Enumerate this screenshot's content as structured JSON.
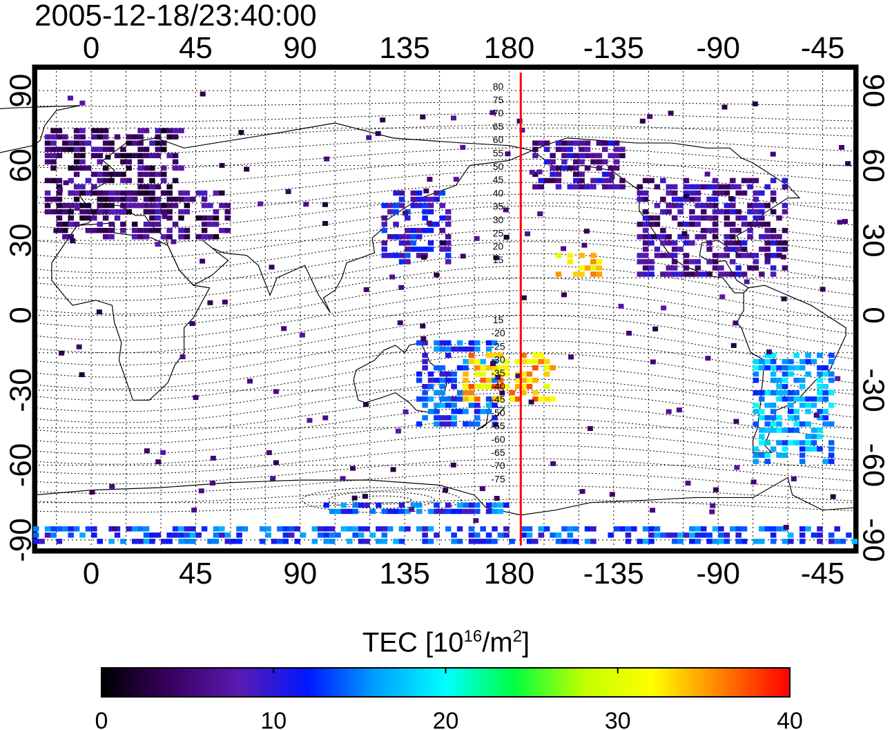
{
  "timestamp": "2005-12-18/23:40:00",
  "map": {
    "top_lon_ticks": [
      "0",
      "45",
      "90",
      "135",
      "180",
      "-135",
      "-90",
      "-45"
    ],
    "bottom_lon_ticks": [
      "0",
      "45",
      "90",
      "135",
      "180",
      "-135",
      "-90",
      "-45"
    ],
    "left_lat_ticks": [
      "90",
      "60",
      "30",
      "0",
      "-30",
      "-60",
      "-90"
    ],
    "right_lat_ticks": [
      "90",
      "60",
      "30",
      "0",
      "-30",
      "-60",
      "-90"
    ],
    "lon_range": [
      -25,
      330
    ],
    "lat_range": [
      -95,
      100
    ],
    "meridian_line_lon": 185,
    "meridian_line_color": "#ff0000",
    "contour_labels_north": [
      "80",
      "75",
      "70",
      "65",
      "60",
      "55",
      "50",
      "45",
      "40",
      "35",
      "30",
      "25",
      "20",
      "15"
    ],
    "contour_labels_south": [
      "15",
      "-20",
      "-25",
      "-30",
      "-35",
      "-40",
      "-45",
      "-50",
      "-55",
      "-60",
      "-65",
      "-70",
      "-75"
    ]
  },
  "colorbar": {
    "title_prefix": "TEC  [10",
    "title_exp1": "16",
    "title_mid": "/m",
    "title_exp2": "2",
    "title_suffix": "]",
    "ticks": [
      "0",
      "10",
      "20",
      "30",
      "40"
    ],
    "range": [
      0,
      40
    ],
    "colors": [
      "#000000",
      "#3a0060",
      "#5a1ab0",
      "#0018ff",
      "#00a0ff",
      "#00ffff",
      "#00ff40",
      "#c0ff00",
      "#ffff00",
      "#ff8000",
      "#ff0000"
    ]
  },
  "tec_patches": [
    {
      "region": "Europe",
      "tec": 5
    },
    {
      "region": "Japan-Asia",
      "tec": 10
    },
    {
      "region": "North-America",
      "tec": 7
    },
    {
      "region": "South-America",
      "tec": 16
    },
    {
      "region": "Australia",
      "tec": 13
    },
    {
      "region": "Pacific-south",
      "tec": 34
    },
    {
      "region": "Pacific-north",
      "tec": 33
    },
    {
      "region": "Antarctica",
      "tec": 13
    }
  ]
}
